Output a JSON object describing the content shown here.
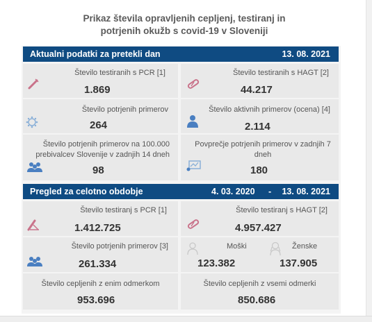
{
  "title_line1": "Prikaz števila opravljenih cepljenj, testiranj in",
  "title_line2": "potrjenih okužb s covid-19 v Sloveniji",
  "daily": {
    "header_left": "Aktualni podatki za pretekli dan",
    "header_right": "13. 08. 2021",
    "pcr_label": "Število testiranih s PCR [1]",
    "pcr_value": "1.869",
    "hagt_label": "Število testiranih s HAGT [2]",
    "hagt_value": "44.217",
    "confirmed_label": "Število potrjenih primerov",
    "confirmed_value": "264",
    "active_label": "Število aktivnih primerov (ocena) [4]",
    "active_value": "2.114",
    "per100k_label_line1": "Število potrjenih primerov na 100.000",
    "per100k_label_line2": "prebivalcev Slovenije v zadnjih 14 dneh",
    "per100k_value": "98",
    "avg7_label_line1": "Povprečje potrjenih primerov v zadnjih 7",
    "avg7_label_line2": "dneh",
    "avg7_value": "180"
  },
  "overall": {
    "header_left": "Pregled za celotno obdobje",
    "header_start": "4. 03. 2020",
    "header_dash": "-",
    "header_end": "13. 08. 2021",
    "pcr_label": "Število testiranj s PCR [1]",
    "pcr_value": "1.412.725",
    "hagt_label": "Število testiranj s HAGT [2]",
    "hagt_value": "4.957.427",
    "confirmed_label": "Število potrjenih primerov [3]",
    "confirmed_value": "261.334",
    "male_label": "Moški",
    "male_value": "123.382",
    "female_label": "Ženske",
    "female_value": "137.905",
    "vacc1_label": "Število cepljenih z enim odmerkom",
    "vacc1_value": "953.696",
    "vacc_all_label": "Število cepljenih z vsemi odmerki",
    "vacc_all_value": "850.686"
  },
  "icons": {
    "pcr": "test-tube-icon",
    "hagt": "rapid-test-icon",
    "virus": "virus-icon",
    "person": "person-icon",
    "group": "group-icon",
    "chart": "monitor-chart-icon",
    "male": "male-outline-icon",
    "female": "female-outline-icon"
  },
  "colors": {
    "header_bg": "#0f4b82",
    "pink_icon": "#c9728a",
    "blue_icon": "#4a7fc1"
  }
}
